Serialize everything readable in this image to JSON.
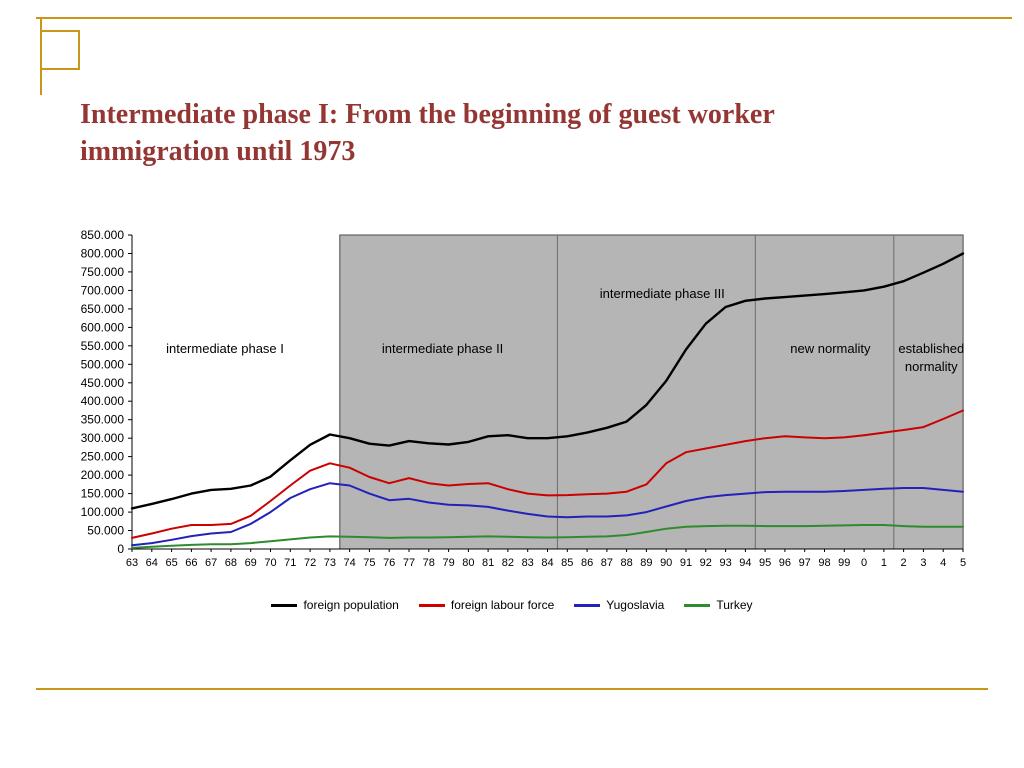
{
  "slide": {
    "title_line1": "Intermediate phase I: From the beginning of guest worker",
    "title_line2": "immigration until 1973",
    "title_color": "#943634",
    "accent_color": "#C89619"
  },
  "chart_data": {
    "type": "line",
    "title": "",
    "xlabel": "",
    "ylabel": "",
    "ylim": [
      0,
      850000
    ],
    "y_step": 50000,
    "y_tick_labels": [
      "850.000",
      "800.000",
      "750.000",
      "700.000",
      "650.000",
      "600.000",
      "550.000",
      "500.000",
      "450.000",
      "400.000",
      "350.000",
      "300.000",
      "250.000",
      "200.000",
      "150.000",
      "100.000",
      "50.000",
      "0"
    ],
    "x_tick_labels": [
      "63",
      "64",
      "65",
      "66",
      "67",
      "68",
      "69",
      "70",
      "71",
      "72",
      "73",
      "74",
      "75",
      "76",
      "77",
      "78",
      "79",
      "80",
      "81",
      "82",
      "83",
      "84",
      "85",
      "86",
      "87",
      "88",
      "89",
      "90",
      "91",
      "92",
      "93",
      "94",
      "95",
      "96",
      "97",
      "98",
      "99",
      "0",
      "1",
      "2",
      "3",
      "4",
      "5"
    ],
    "shaded_region": {
      "start_index": 10.5,
      "end_index": 42,
      "fill": "#b5b5b5"
    },
    "phase_dividers": [
      21.5,
      31.5,
      38.5
    ],
    "phases": [
      {
        "label": "intermediate phase I",
        "start_index": 0,
        "end_index": 10.5,
        "label_index": 4.7,
        "label_row": "lower",
        "shaded": false
      },
      {
        "label": "intermediate phase II",
        "start_index": 10.5,
        "end_index": 21.5,
        "label_index": 15.7,
        "label_row": "lower",
        "shaded": true
      },
      {
        "label": "intermediate phase III",
        "start_index": 21.5,
        "end_index": 31.5,
        "label_index": 26.8,
        "label_row": "upper",
        "shaded": true
      },
      {
        "label": "new normality",
        "start_index": 31.5,
        "end_index": 38.5,
        "label_index": 35.3,
        "label_row": "lower",
        "shaded": true
      },
      {
        "label": "established\nnormality",
        "start_index": 38.5,
        "end_index": 42,
        "label_index": 40.4,
        "label_row": "lower",
        "shaded": true
      }
    ],
    "series": [
      {
        "name": "foreign population",
        "color": "#000000",
        "width": 2.4,
        "values": [
          110000,
          122000,
          135000,
          150000,
          160000,
          163000,
          172000,
          196000,
          240000,
          282000,
          310000,
          300000,
          285000,
          280000,
          292000,
          286000,
          283000,
          290000,
          305000,
          308000,
          300000,
          300000,
          305000,
          315000,
          328000,
          345000,
          390000,
          455000,
          540000,
          610000,
          655000,
          672000,
          678000,
          682000,
          686000,
          690000,
          695000,
          700000,
          710000,
          725000,
          748000,
          772000,
          800000
        ]
      },
      {
        "name": "foreign labour force",
        "color": "#cc0000",
        "width": 2,
        "values": [
          30000,
          42000,
          55000,
          65000,
          65000,
          68000,
          90000,
          130000,
          172000,
          212000,
          232000,
          220000,
          195000,
          178000,
          192000,
          178000,
          172000,
          176000,
          178000,
          162000,
          150000,
          145000,
          146000,
          148000,
          150000,
          155000,
          175000,
          232000,
          262000,
          272000,
          282000,
          292000,
          300000,
          305000,
          302000,
          300000,
          302000,
          308000,
          315000,
          322000,
          330000,
          352000,
          375000
        ]
      },
      {
        "name": "Yugoslavia",
        "color": "#2222bb",
        "width": 2,
        "values": [
          10000,
          16000,
          25000,
          35000,
          42000,
          46000,
          68000,
          100000,
          138000,
          162000,
          178000,
          172000,
          150000,
          132000,
          136000,
          126000,
          120000,
          118000,
          114000,
          104000,
          95000,
          88000,
          86000,
          88000,
          88000,
          91000,
          100000,
          115000,
          130000,
          140000,
          146000,
          150000,
          154000,
          155000,
          155000,
          155000,
          157000,
          160000,
          163000,
          165000,
          165000,
          160000,
          155000
        ]
      },
      {
        "name": "Turkey",
        "color": "#2e8b2e",
        "width": 2,
        "values": [
          3000,
          6000,
          9000,
          11000,
          13000,
          13000,
          16000,
          21000,
          26000,
          31000,
          34000,
          33000,
          32000,
          30000,
          31000,
          31000,
          32000,
          33000,
          34000,
          33000,
          32000,
          31000,
          32000,
          33000,
          34000,
          38000,
          46000,
          55000,
          60000,
          62000,
          63000,
          63000,
          62000,
          62000,
          62000,
          63000,
          64000,
          65000,
          65000,
          62000,
          60000,
          60000,
          60000
        ]
      }
    ]
  },
  "legend": {
    "items": [
      {
        "label": "foreign population",
        "color": "#000000"
      },
      {
        "label": "foreign labour force",
        "color": "#cc0000"
      },
      {
        "label": "Yugoslavia",
        "color": "#2222bb"
      },
      {
        "label": "Turkey",
        "color": "#2e8b2e"
      }
    ]
  }
}
